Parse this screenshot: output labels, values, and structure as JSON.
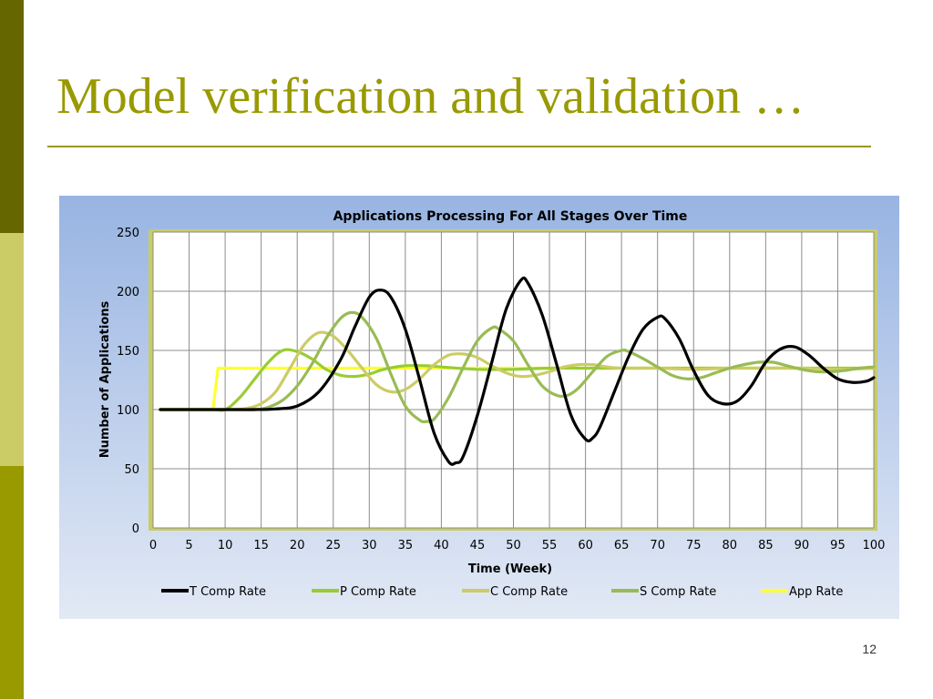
{
  "slide": {
    "title": "Model verification and validation …",
    "page_number": "12"
  },
  "colors": {
    "sidebar_top": "#666600",
    "sidebar_mid": "#cccc66",
    "sidebar_bottom": "#999900",
    "title": "#999900"
  },
  "chart_data": {
    "type": "line",
    "title": "Applications Processing For All Stages Over Time",
    "xlabel": "Time (Week)",
    "ylabel": "Number of Applications",
    "xlim": [
      0,
      100
    ],
    "ylim": [
      0,
      250
    ],
    "xticks": [
      0,
      5,
      10,
      15,
      20,
      25,
      30,
      35,
      40,
      45,
      50,
      55,
      60,
      65,
      70,
      75,
      80,
      85,
      90,
      95,
      100
    ],
    "yticks": [
      0,
      50,
      100,
      150,
      200,
      250
    ],
    "grid": true,
    "legend_position": "bottom",
    "series": [
      {
        "name": "T Comp Rate",
        "color": "#000000",
        "points": [
          [
            1,
            100
          ],
          [
            10,
            100
          ],
          [
            14,
            100
          ],
          [
            17,
            100.5
          ],
          [
            20,
            103
          ],
          [
            23,
            115
          ],
          [
            26,
            142
          ],
          [
            28,
            170
          ],
          [
            30,
            195
          ],
          [
            31.5,
            201
          ],
          [
            33,
            195
          ],
          [
            35,
            168
          ],
          [
            37,
            125
          ],
          [
            39,
            80
          ],
          [
            41,
            56
          ],
          [
            42,
            55
          ],
          [
            43,
            60
          ],
          [
            45,
            95
          ],
          [
            47,
            140
          ],
          [
            49,
            185
          ],
          [
            51,
            209
          ],
          [
            52,
            207
          ],
          [
            54,
            180
          ],
          [
            56,
            138
          ],
          [
            58,
            95
          ],
          [
            60,
            75
          ],
          [
            61,
            76
          ],
          [
            62,
            85
          ],
          [
            64,
            115
          ],
          [
            66,
            145
          ],
          [
            68,
            168
          ],
          [
            70,
            178
          ],
          [
            71,
            177
          ],
          [
            73,
            160
          ],
          [
            75,
            133
          ],
          [
            77,
            112
          ],
          [
            79,
            105
          ],
          [
            81,
            107
          ],
          [
            83,
            120
          ],
          [
            85,
            140
          ],
          [
            87,
            151
          ],
          [
            89,
            153
          ],
          [
            91,
            146
          ],
          [
            93,
            135
          ],
          [
            95,
            126
          ],
          [
            97,
            123
          ],
          [
            99,
            124
          ],
          [
            100,
            127
          ]
        ]
      },
      {
        "name": "P Comp Rate",
        "color": "#99cc33",
        "points": [
          [
            1,
            100
          ],
          [
            8,
            100
          ],
          [
            10,
            100
          ],
          [
            12,
            110
          ],
          [
            14,
            125
          ],
          [
            16,
            140
          ],
          [
            18,
            150
          ],
          [
            20,
            149
          ],
          [
            22,
            143
          ],
          [
            24,
            134
          ],
          [
            26,
            129
          ],
          [
            28,
            128
          ],
          [
            30,
            130
          ],
          [
            32,
            134
          ],
          [
            35,
            137
          ],
          [
            38,
            137
          ],
          [
            40,
            136
          ],
          [
            45,
            134
          ],
          [
            50,
            134
          ],
          [
            55,
            135
          ],
          [
            60,
            135
          ],
          [
            65,
            135
          ],
          [
            70,
            135
          ],
          [
            75,
            135
          ],
          [
            80,
            135
          ],
          [
            85,
            135
          ],
          [
            90,
            135
          ],
          [
            95,
            135
          ],
          [
            100,
            135
          ]
        ]
      },
      {
        "name": "C Comp Rate",
        "color": "#cccc66",
        "points": [
          [
            1,
            100
          ],
          [
            10,
            100
          ],
          [
            13,
            101
          ],
          [
            15,
            105
          ],
          [
            17,
            115
          ],
          [
            19,
            135
          ],
          [
            21,
            155
          ],
          [
            23,
            165
          ],
          [
            25,
            162
          ],
          [
            27,
            150
          ],
          [
            29,
            135
          ],
          [
            31,
            121
          ],
          [
            33,
            115
          ],
          [
            35,
            117
          ],
          [
            37,
            126
          ],
          [
            39,
            138
          ],
          [
            41,
            146
          ],
          [
            43,
            147
          ],
          [
            45,
            144
          ],
          [
            47,
            137
          ],
          [
            49,
            131
          ],
          [
            51,
            128
          ],
          [
            53,
            129
          ],
          [
            55,
            132
          ],
          [
            57,
            136
          ],
          [
            59,
            138
          ],
          [
            61,
            138
          ],
          [
            63,
            136
          ],
          [
            65,
            135
          ],
          [
            70,
            135
          ],
          [
            75,
            134
          ],
          [
            80,
            135
          ],
          [
            85,
            135
          ],
          [
            90,
            135
          ],
          [
            95,
            134
          ],
          [
            100,
            135
          ]
        ]
      },
      {
        "name": "S Comp Rate",
        "color": "#99bb55",
        "points": [
          [
            1,
            100
          ],
          [
            10,
            100
          ],
          [
            14,
            100
          ],
          [
            16,
            102
          ],
          [
            18,
            108
          ],
          [
            20,
            120
          ],
          [
            22,
            138
          ],
          [
            24,
            160
          ],
          [
            26,
            177
          ],
          [
            27.5,
            182
          ],
          [
            29,
            178
          ],
          [
            31,
            160
          ],
          [
            33,
            130
          ],
          [
            35,
            103
          ],
          [
            37,
            91
          ],
          [
            38,
            90
          ],
          [
            39,
            92
          ],
          [
            41,
            110
          ],
          [
            43,
            135
          ],
          [
            45,
            158
          ],
          [
            47,
            169
          ],
          [
            48,
            168
          ],
          [
            50,
            158
          ],
          [
            52,
            138
          ],
          [
            54,
            120
          ],
          [
            56,
            112
          ],
          [
            57.5,
            112
          ],
          [
            59,
            118
          ],
          [
            61,
            132
          ],
          [
            63,
            145
          ],
          [
            65,
            150
          ],
          [
            66,
            149
          ],
          [
            68,
            143
          ],
          [
            70,
            136
          ],
          [
            72,
            129
          ],
          [
            74,
            126
          ],
          [
            76,
            127
          ],
          [
            78,
            131
          ],
          [
            80,
            135
          ],
          [
            82,
            138
          ],
          [
            84,
            140
          ],
          [
            86,
            140
          ],
          [
            88,
            137
          ],
          [
            90,
            134
          ],
          [
            92,
            132
          ],
          [
            94,
            132
          ],
          [
            96,
            133
          ],
          [
            98,
            135
          ],
          [
            100,
            136
          ]
        ]
      },
      {
        "name": "App Rate",
        "color": "#ffff33",
        "points": [
          [
            1,
            100
          ],
          [
            8.3,
            100
          ],
          [
            9,
            135
          ],
          [
            100,
            135
          ]
        ]
      }
    ]
  }
}
